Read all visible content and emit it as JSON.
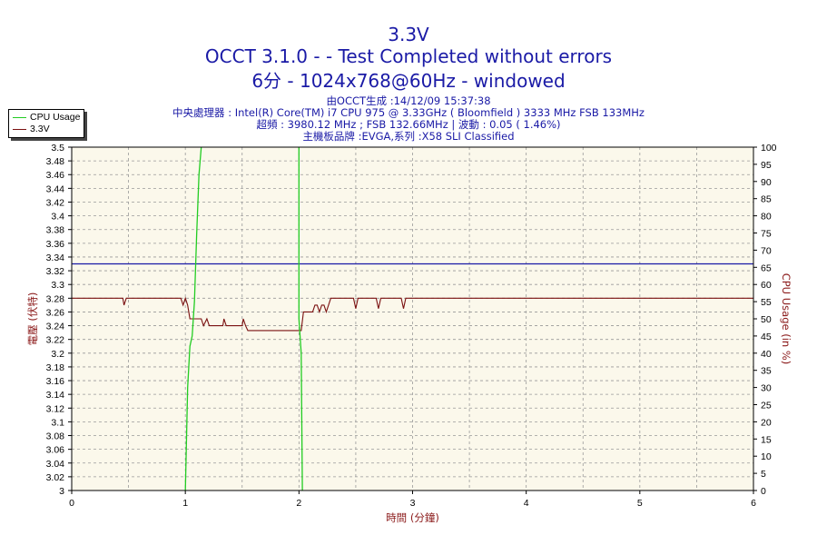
{
  "chart_data": {
    "type": "line",
    "title": "3.3V",
    "subtitle_lines": [
      "OCCT 3.1.0 -  - Test Completed without errors",
      "6分 - 1024x768@60Hz - windowed"
    ],
    "info_lines": [
      "由OCCT生成 :14/12/09 15:37:38",
      "中央處理器 : Intel(R) Core(TM) i7 CPU 975 @ 3.33GHz ( Bloomfield ) 3333 MHz FSB 133MHz",
      "超頻 : 3980.12 MHz ; FSB 132.66MHz | 波動 : 0.05 ( 1.46%)",
      "主機板品牌 :EVGA,系列 :X58 SLI Classified"
    ],
    "xlabel": "時間 (分鐘)",
    "ylabel_left": "電壓 (伏特)",
    "ylabel_right": "CPU Usage (in %)",
    "xlim": [
      0,
      6
    ],
    "ylim_left": [
      3.0,
      3.5
    ],
    "ylim_right": [
      0,
      100
    ],
    "x_ticks": [
      "0",
      "1",
      "2",
      "3",
      "4",
      "5",
      "6"
    ],
    "y_left_ticks": [
      "3",
      "3.02",
      "3.04",
      "3.06",
      "3.08",
      "3.1",
      "3.12",
      "3.14",
      "3.16",
      "3.18",
      "3.2",
      "3.22",
      "3.24",
      "3.26",
      "3.28",
      "3.3",
      "3.32",
      "3.34",
      "3.36",
      "3.38",
      "3.4",
      "3.42",
      "3.44",
      "3.46",
      "3.48",
      "3.5"
    ],
    "y_right_ticks": [
      "0",
      "5",
      "10",
      "15",
      "20",
      "25",
      "30",
      "35",
      "40",
      "45",
      "50",
      "55",
      "60",
      "65",
      "70",
      "75",
      "80",
      "85",
      "90",
      "95",
      "100"
    ],
    "grid": true,
    "legend_position": "top-left",
    "reference_line": {
      "value": 3.33,
      "color": "#1a1aa6"
    },
    "series": [
      {
        "name": "CPU Usage",
        "axis": "right",
        "color": "#22cc22",
        "segments": [
          [
            [
              1.0,
              0
            ],
            [
              1.02,
              30
            ],
            [
              1.04,
              42
            ],
            [
              1.06,
              45
            ],
            [
              1.08,
              55
            ],
            [
              1.1,
              75
            ],
            [
              1.12,
              92
            ],
            [
              1.14,
              100
            ]
          ],
          [
            [
              2.0,
              100
            ],
            [
              2.0,
              50
            ],
            [
              2.02,
              40
            ],
            [
              2.03,
              0
            ]
          ]
        ]
      },
      {
        "name": "3.3V",
        "axis": "left",
        "color": "#7a1010",
        "points": [
          [
            0,
            3.28
          ],
          [
            0.45,
            3.28
          ],
          [
            0.46,
            3.27
          ],
          [
            0.48,
            3.28
          ],
          [
            0.96,
            3.28
          ],
          [
            0.98,
            3.27
          ],
          [
            1.0,
            3.28
          ],
          [
            1.02,
            3.27
          ],
          [
            1.04,
            3.25
          ],
          [
            1.14,
            3.25
          ],
          [
            1.16,
            3.24
          ],
          [
            1.19,
            3.25
          ],
          [
            1.21,
            3.24
          ],
          [
            1.23,
            3.24
          ],
          [
            1.29,
            3.24
          ],
          [
            1.33,
            3.24
          ],
          [
            1.34,
            3.25
          ],
          [
            1.36,
            3.24
          ],
          [
            1.5,
            3.24
          ],
          [
            1.51,
            3.25
          ],
          [
            1.53,
            3.24
          ],
          [
            1.55,
            3.233
          ],
          [
            2.0,
            3.233
          ],
          [
            2.02,
            3.233
          ],
          [
            2.04,
            3.26
          ],
          [
            2.12,
            3.26
          ],
          [
            2.14,
            3.27
          ],
          [
            2.16,
            3.27
          ],
          [
            2.18,
            3.26
          ],
          [
            2.2,
            3.27
          ],
          [
            2.22,
            3.27
          ],
          [
            2.24,
            3.26
          ],
          [
            2.26,
            3.27
          ],
          [
            2.28,
            3.28
          ],
          [
            2.48,
            3.28
          ],
          [
            2.5,
            3.265
          ],
          [
            2.52,
            3.28
          ],
          [
            2.68,
            3.28
          ],
          [
            2.7,
            3.265
          ],
          [
            2.72,
            3.28
          ],
          [
            2.9,
            3.28
          ],
          [
            2.92,
            3.265
          ],
          [
            2.94,
            3.28
          ],
          [
            6.0,
            3.28
          ]
        ]
      }
    ]
  }
}
